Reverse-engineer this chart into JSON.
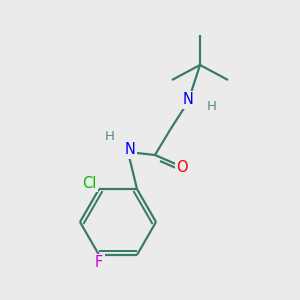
{
  "background_color": "#ebebeb",
  "bond_color": "#3a7a6a",
  "atom_colors": {
    "N": "#0000ee",
    "O": "#ee0000",
    "Cl": "#00bb00",
    "F": "#cc00cc",
    "H": "#5a8a7a",
    "C": "#3a7a6a"
  },
  "figsize": [
    3.0,
    3.0
  ],
  "dpi": 100,
  "lw": 1.6,
  "ring_lw": 1.5
}
